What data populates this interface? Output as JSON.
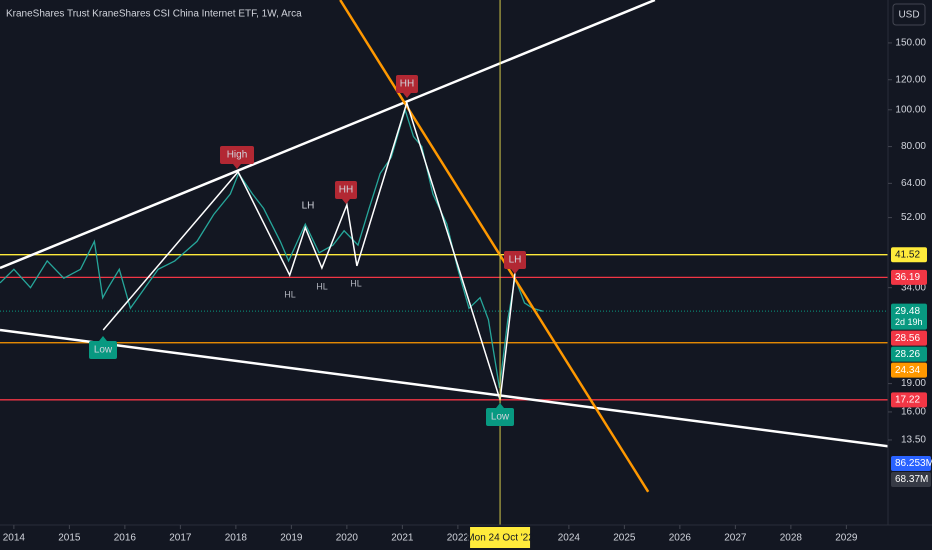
{
  "chart_data": {
    "type": "line",
    "title": "KraneShares Trust KraneShares CSI China Internet ETF, 1W, Arca",
    "currency": "USD",
    "log_scale": true,
    "xlim": [
      2013.75,
      2029.75
    ],
    "xticks": [
      2014,
      2015,
      2016,
      2017,
      2018,
      2019,
      2020,
      2021,
      2022,
      2024,
      2025,
      2026,
      2027,
      2028,
      2029
    ],
    "ylim": [
      8.06,
      194.6
    ],
    "yticks": [
      {
        "value": 150,
        "label": "150.00"
      },
      {
        "value": 120,
        "label": "120.00"
      },
      {
        "value": 100,
        "label": "100.00"
      },
      {
        "value": 80,
        "label": "80.00"
      },
      {
        "value": 64,
        "label": "64.00"
      },
      {
        "value": 52,
        "label": "52.00"
      },
      {
        "value": 34,
        "label": "34.00"
      },
      {
        "value": 19,
        "label": "19.00"
      },
      {
        "value": 16,
        "label": "16.00"
      },
      {
        "value": 13.5,
        "label": "13.50"
      }
    ],
    "series": [
      {
        "color": "#26a69a",
        "x": [
          2013.75,
          2014.0,
          2014.3,
          2014.6,
          2014.9,
          2015.2,
          2015.45,
          2015.6,
          2015.7,
          2015.9,
          2016.1,
          2016.3,
          2016.6,
          2016.9,
          2017.3,
          2017.6,
          2017.9,
          2018.05,
          2018.3,
          2018.5,
          2018.8,
          2018.95,
          2019.25,
          2019.5,
          2019.75,
          2019.95,
          2020.2,
          2020.4,
          2020.6,
          2020.8,
          2021.05,
          2021.2,
          2021.35,
          2021.55,
          2021.8,
          2022.0,
          2022.2,
          2022.4,
          2022.55,
          2022.75,
          2022.9,
          2023.03,
          2023.2,
          2023.35,
          2023.53
        ],
        "values": [
          35,
          38,
          34,
          40,
          36,
          38,
          45,
          32,
          34,
          38,
          30,
          33,
          38,
          40,
          45,
          53,
          60,
          68,
          60,
          55,
          45,
          40,
          50,
          42,
          44,
          48,
          44,
          55,
          68,
          75,
          100,
          85,
          80,
          60,
          50,
          38,
          30,
          32,
          28,
          18.5,
          28,
          36,
          31,
          30,
          29.48
        ]
      }
    ],
    "trendlines": [
      {
        "color": "#ffffff",
        "x": [
          2013.75,
          2025.55
        ],
        "y": [
          38.3,
          194.6
        ]
      },
      {
        "color": "#ffffff",
        "x": [
          2013.75,
          2029.75
        ],
        "y": [
          26.3,
          13.0
        ]
      },
      {
        "color": "#ff9800",
        "x": [
          2019.88,
          2025.43
        ],
        "y": [
          194.6,
          9.86
        ]
      }
    ],
    "zigzag": {
      "color": "#ffffff",
      "x": [
        2015.61,
        2018.04,
        2018.97,
        2019.25,
        2019.55,
        2020.0,
        2020.18,
        2021.08,
        2022.76,
        2023.03
      ],
      "y": [
        26.3,
        68.6,
        36.7,
        48.9,
        38.3,
        56.2,
        38.8,
        104.3,
        17.2,
        37.2
      ]
    },
    "levels": [
      {
        "value": 41.52,
        "color": "#ffeb3b"
      },
      {
        "value": 36.19,
        "color": "#f23645"
      },
      {
        "value": 24.34,
        "color": "#ff9800"
      },
      {
        "value": 17.22,
        "color": "#f23645"
      }
    ],
    "tags": [
      {
        "value": 29.48,
        "color": "#089981",
        "countdown": "2d 19h"
      },
      {
        "value": 28.56,
        "color": "#f23645"
      },
      {
        "value": 28.26,
        "color": "#089981"
      }
    ],
    "volume_tags": [
      {
        "label": "86.253M",
        "color": "#2962ff"
      },
      {
        "label": "68.37M",
        "color": "#363a45"
      }
    ],
    "annotations": [
      {
        "text": "High",
        "style": "badge-red"
      },
      {
        "text": "HH",
        "style": "badge-red"
      },
      {
        "text": "HH",
        "style": "badge-red"
      },
      {
        "text": "LH",
        "style": "badge-red"
      },
      {
        "text": "Low",
        "style": "badge-green"
      },
      {
        "text": "Low",
        "style": "badge-green"
      },
      {
        "text": "LH",
        "style": "text-white"
      },
      {
        "text": "HL",
        "style": "text-grey"
      },
      {
        "text": "HL",
        "style": "text-grey"
      },
      {
        "text": "HL",
        "style": "text-grey"
      }
    ],
    "crosshair": {
      "x": 2022.76,
      "label": "Mon 24 Oct '22"
    }
  }
}
